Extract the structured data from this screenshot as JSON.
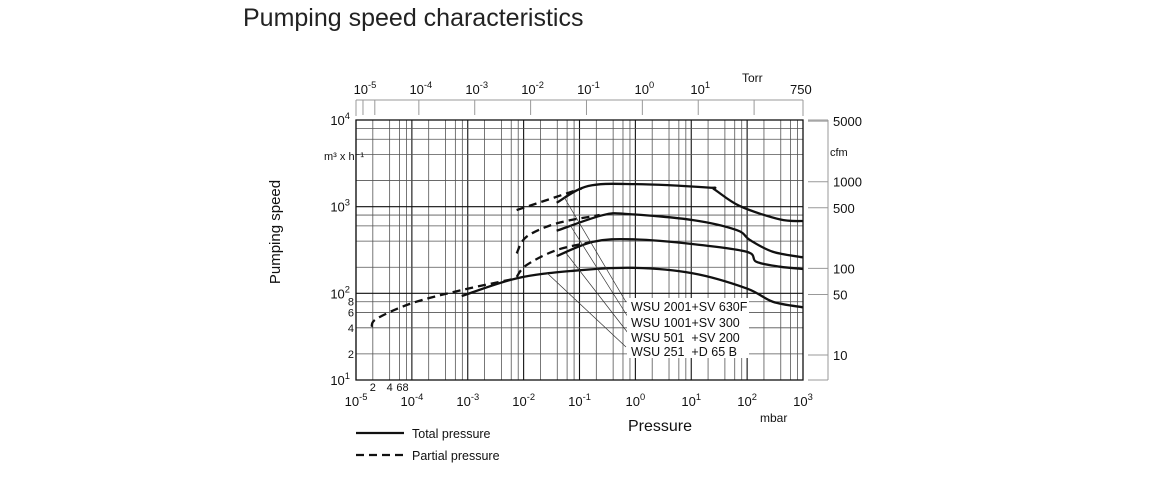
{
  "chart_data": {
    "type": "line",
    "title": "Pumping speed characteristics",
    "xlabel": "Pressure",
    "x_unit": "mbar",
    "ylabel": "Pumping speed",
    "y_unit": "m³ x h⁻¹",
    "x_scale": "log",
    "y_scale": "log",
    "xlim": [
      1e-05,
      1000
    ],
    "ylim": [
      10,
      10000
    ],
    "grid": true,
    "x_tick_exponents": [
      -5,
      -4,
      -3,
      -2,
      -1,
      0,
      1,
      2,
      3
    ],
    "x_minor_labels": [
      "2",
      "4",
      "68"
    ],
    "y_tick_exponents": [
      1,
      2,
      3,
      4
    ],
    "y_minor_labels": [
      "8",
      "6",
      "4",
      "2"
    ],
    "y_minor_values": [
      80,
      60,
      40,
      20
    ],
    "top_axis": {
      "unit": "Torr",
      "tick_exponents": [
        -5,
        -4,
        -3,
        -2,
        -1,
        0,
        1
      ],
      "end_label": "750"
    },
    "right_axis": {
      "unit": "cfm",
      "ticks": [
        5000,
        1000,
        500,
        100,
        50,
        10
      ]
    },
    "series": [
      {
        "name": "WSU 2001+SV 630F",
        "style": "solid",
        "points": [
          [
            0.039,
            1110
          ],
          [
            0.143,
            1730
          ],
          [
            1,
            1820
          ],
          [
            21,
            1660
          ],
          [
            26,
            1580
          ],
          [
            74,
            1016
          ],
          [
            385,
            713
          ],
          [
            1000,
            682
          ]
        ]
      },
      {
        "name": "WSU 2001+SV 630F",
        "style": "dashed",
        "points": [
          [
            0.0075,
            913
          ],
          [
            0.11,
            1625
          ]
        ]
      },
      {
        "name": "WSU 1001+SV 300",
        "style": "solid",
        "points": [
          [
            0.039,
            527
          ],
          [
            0.265,
            800
          ],
          [
            0.77,
            820
          ],
          [
            10.8,
            700
          ],
          [
            65,
            537
          ],
          [
            112,
            412
          ],
          [
            288,
            302
          ],
          [
            1000,
            260
          ]
        ]
      },
      {
        "name": "WSU 1001+SV 300",
        "style": "dashed",
        "points": [
          [
            0.0075,
            289
          ],
          [
            0.0113,
            450
          ],
          [
            0.039,
            641
          ],
          [
            0.23,
            800
          ]
        ]
      },
      {
        "name": "WSU 501 +SV 200",
        "style": "solid",
        "points": [
          [
            0.039,
            269
          ],
          [
            0.176,
            394
          ],
          [
            0.9,
            420
          ],
          [
            10.8,
            370
          ],
          [
            98,
            302
          ],
          [
            147,
            231
          ],
          [
            385,
            203
          ],
          [
            1000,
            191
          ]
        ]
      },
      {
        "name": "WSU 501 +SV 200",
        "style": "dashed",
        "points": [
          [
            0.0075,
            155
          ],
          [
            0.0113,
            212
          ],
          [
            0.039,
            316
          ],
          [
            0.176,
            394
          ]
        ]
      },
      {
        "name": "WSU 251 +D 65 B",
        "style": "solid",
        "points": [
          [
            0.00078,
            93
          ],
          [
            0.0075,
            149
          ],
          [
            0.077,
            182
          ],
          [
            0.9,
            197
          ],
          [
            10.8,
            170
          ],
          [
            98,
            114
          ],
          [
            288,
            80
          ],
          [
            1000,
            69
          ]
        ]
      },
      {
        "name": "WSU 251 +D 65 B",
        "style": "dashed",
        "points": [
          [
            1.9e-05,
            41
          ],
          [
            2.35e-05,
            51
          ],
          [
            0.0001,
            77
          ],
          [
            0.00078,
            109
          ],
          [
            0.0075,
            149
          ]
        ]
      }
    ],
    "curve_labels": [
      "WSU 2001+SV 630F",
      "WSU 1001+SV 300",
      "WSU 501  +SV 200",
      "WSU 251  +D 65 B"
    ],
    "legend": {
      "placement": "bottom-left",
      "entries": [
        {
          "label": "Total pressure",
          "style": "solid"
        },
        {
          "label": "Partial pressure",
          "style": "dashed"
        }
      ]
    },
    "colors": {
      "line": "#111111",
      "grid": "#555555",
      "axis_secondary": "#999999"
    }
  }
}
